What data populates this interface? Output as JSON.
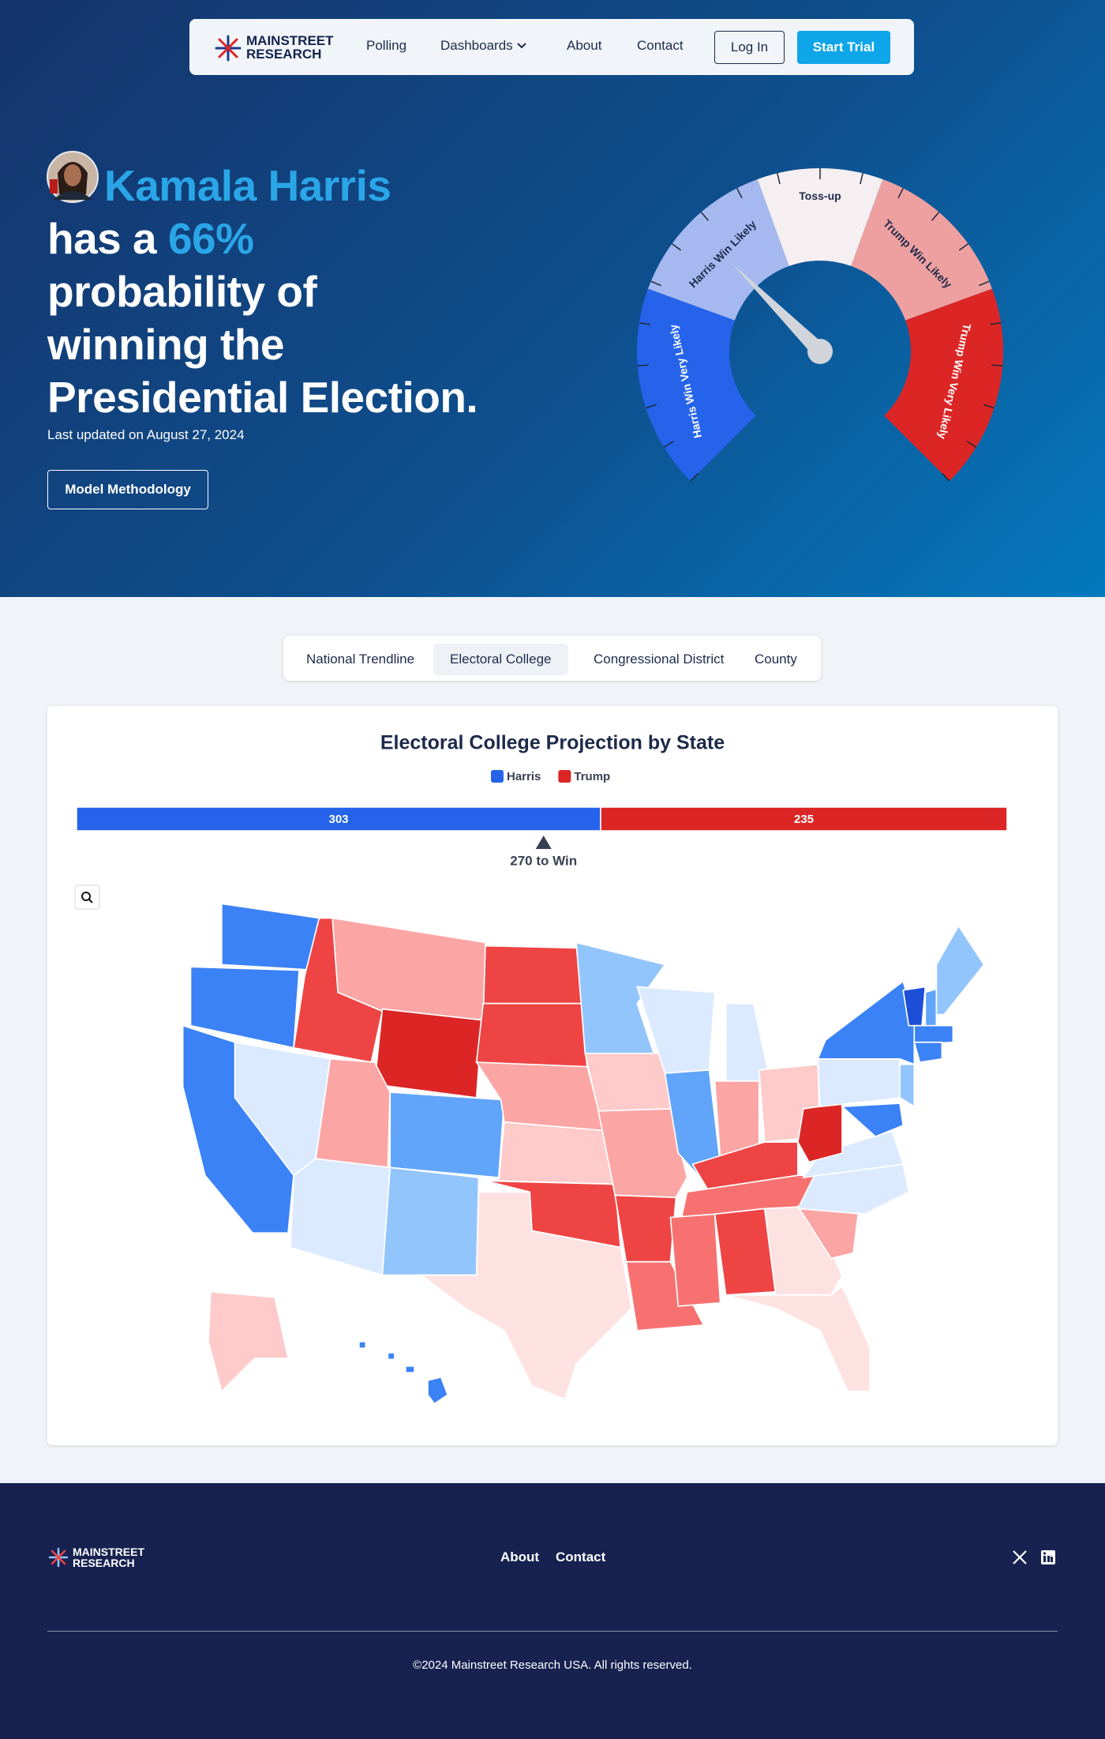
{
  "nav": {
    "logo": [
      "MAINSTREET",
      "RESEARCH"
    ],
    "links": [
      "Polling",
      "Dashboards",
      "About",
      "Contact"
    ],
    "login": "Log In",
    "trial": "Start Trial"
  },
  "hero": {
    "name": "Kamala Harris",
    "prefix": "has a",
    "probability": "66%",
    "lines": [
      "probability of",
      "winning the",
      "Presidential Election."
    ],
    "updated": "Last updated on August 27, 2024",
    "button": "Model Methodology"
  },
  "gauge": {
    "labels": [
      "Harris Win Very Likely",
      "Harris Win Likely",
      "Toss-up",
      "Trump Win Likely",
      "Trump Win Very Likely"
    ]
  },
  "tabs": [
    "National Trendline",
    "Electoral College",
    "Congressional District",
    "County"
  ],
  "chart_data": {
    "type": "stacked-bar",
    "title": "Electoral College Projection by State",
    "series": [
      {
        "name": "Harris",
        "color": "#2563eb",
        "values": [
          303
        ]
      },
      {
        "name": "Trump",
        "color": "#dc2626",
        "values": [
          235
        ]
      }
    ],
    "threshold": {
      "value": 270,
      "label": "270 to Win"
    }
  },
  "footer": {
    "logo": [
      "MAINSTREET",
      "RESEARCH"
    ],
    "links": [
      "About",
      "Contact"
    ],
    "copyright": "©2024 Mainstreet Research USA. All rights reserved."
  }
}
